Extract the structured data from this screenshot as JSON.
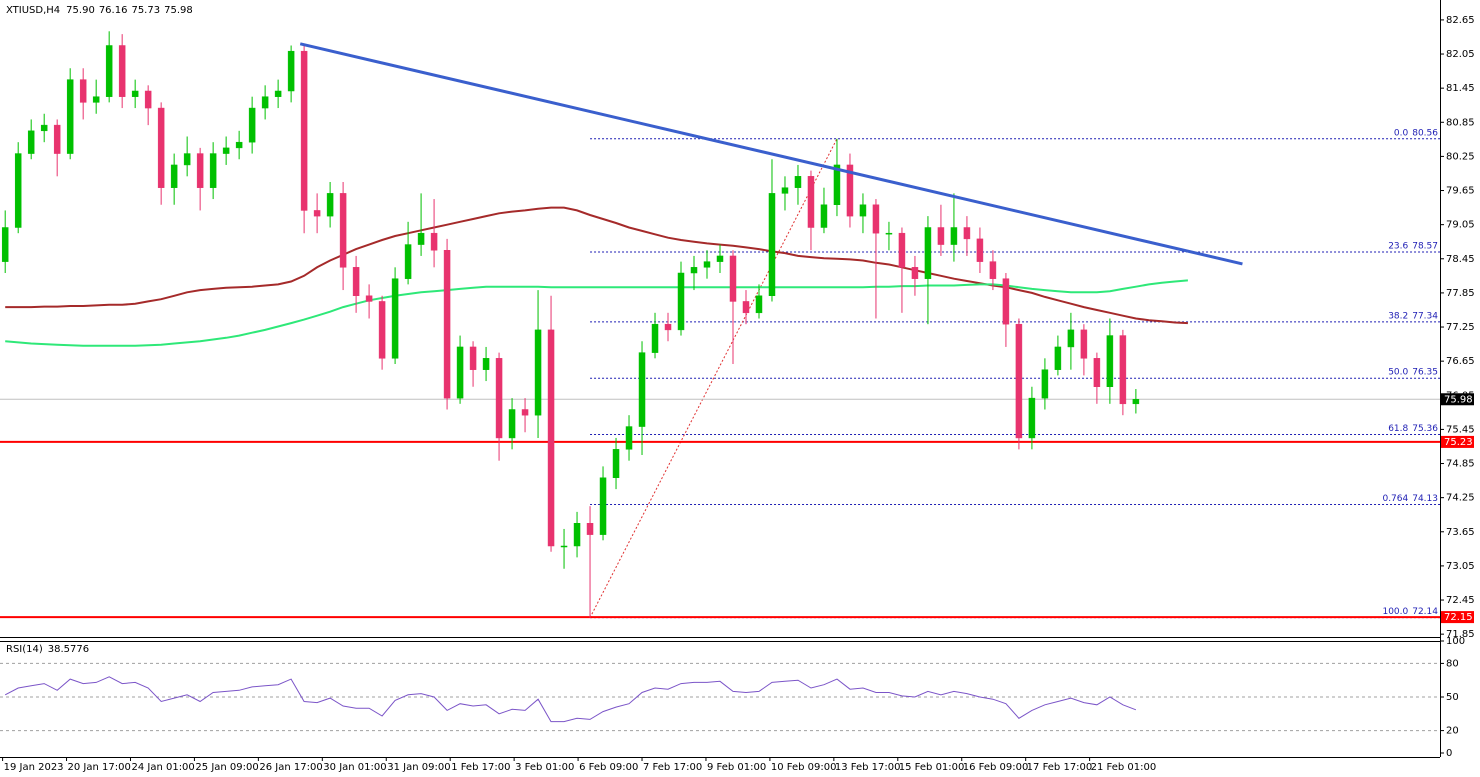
{
  "header": {
    "symbol": "XTIUSD,H4",
    "ohlc": [
      "75.90",
      "76.16",
      "75.73",
      "75.98"
    ]
  },
  "chart_data": {
    "type": "candlestick",
    "open": [
      78.4,
      79.0,
      80.3,
      80.7,
      80.8,
      80.3,
      81.6,
      81.2,
      81.3,
      82.2,
      81.3,
      81.4,
      81.1,
      79.7,
      80.1,
      80.3,
      79.7,
      80.3,
      80.4,
      80.5,
      81.1,
      81.3,
      81.4,
      82.1,
      79.3,
      79.2,
      79.6,
      78.3,
      77.8,
      77.7,
      76.7,
      78.1,
      78.7,
      78.9,
      78.6,
      76.0,
      76.9,
      76.5,
      76.7,
      75.3,
      75.8,
      75.7,
      77.2,
      73.4,
      73.4,
      73.8,
      73.6,
      74.6,
      75.1,
      75.5,
      76.8,
      77.3,
      77.2,
      78.2,
      78.3,
      78.4,
      78.5,
      77.7,
      77.5,
      77.8,
      79.6,
      79.7,
      79.9,
      79.0,
      79.4,
      80.1,
      79.2,
      79.4,
      78.9,
      78.9,
      78.3,
      78.1,
      79.0,
      78.7,
      79.0,
      78.8,
      78.4,
      78.1,
      77.3,
      75.3,
      76.0,
      76.5,
      76.9,
      77.2,
      76.7,
      76.2,
      77.1,
      75.9,
      null,
      null,
      null,
      null
    ],
    "high": [
      79.3,
      80.5,
      80.9,
      81.0,
      80.9,
      81.8,
      81.8,
      81.6,
      82.45,
      82.4,
      81.6,
      81.5,
      81.2,
      80.3,
      80.6,
      80.4,
      80.5,
      80.6,
      80.7,
      81.3,
      81.5,
      81.6,
      82.2,
      82.2,
      79.6,
      79.8,
      79.8,
      78.5,
      78.0,
      77.8,
      78.3,
      79.1,
      79.6,
      79.5,
      78.8,
      77.1,
      77.0,
      76.9,
      76.8,
      76.0,
      76.0,
      77.9,
      77.8,
      73.7,
      74.0,
      74.1,
      74.8,
      75.3,
      75.7,
      77.0,
      77.5,
      77.5,
      78.4,
      78.5,
      78.6,
      78.7,
      78.6,
      77.9,
      78.0,
      80.2,
      79.9,
      80.1,
      80.0,
      79.7,
      80.56,
      80.3,
      79.6,
      79.5,
      79.1,
      79.0,
      78.5,
      79.2,
      79.4,
      79.6,
      79.2,
      79.0,
      78.6,
      78.2,
      77.4,
      76.2,
      76.7,
      77.1,
      77.5,
      77.3,
      76.8,
      77.4,
      77.2,
      76.16,
      null,
      null,
      null,
      null
    ],
    "low": [
      78.2,
      78.9,
      80.2,
      80.5,
      79.9,
      80.2,
      80.9,
      81.0,
      81.2,
      81.1,
      81.1,
      80.8,
      79.4,
      79.4,
      79.9,
      79.3,
      79.5,
      80.1,
      80.2,
      80.3,
      80.9,
      81.1,
      81.2,
      78.9,
      78.9,
      79.0,
      77.9,
      77.5,
      77.4,
      76.5,
      76.6,
      78.0,
      78.5,
      78.3,
      75.8,
      75.9,
      76.2,
      76.3,
      74.9,
      75.1,
      75.4,
      75.3,
      73.3,
      73.0,
      73.2,
      72.14,
      73.5,
      74.4,
      74.9,
      75.0,
      76.7,
      77.0,
      77.1,
      77.9,
      78.1,
      78.2,
      76.6,
      77.3,
      77.4,
      77.7,
      79.3,
      79.4,
      78.6,
      78.9,
      79.2,
      79.0,
      78.9,
      77.4,
      78.6,
      77.5,
      77.8,
      77.3,
      78.5,
      78.4,
      78.5,
      78.2,
      77.9,
      76.9,
      75.1,
      75.1,
      75.8,
      76.4,
      76.5,
      76.4,
      75.9,
      75.9,
      75.7,
      75.73,
      null,
      null,
      null,
      null
    ],
    "close": [
      79.0,
      80.3,
      80.7,
      80.8,
      80.3,
      81.6,
      81.2,
      81.3,
      82.2,
      81.3,
      81.4,
      81.1,
      79.7,
      80.1,
      80.3,
      79.7,
      80.3,
      80.4,
      80.5,
      81.1,
      81.3,
      81.4,
      82.1,
      79.3,
      79.2,
      79.6,
      78.3,
      77.8,
      77.7,
      76.7,
      78.1,
      78.7,
      78.9,
      78.6,
      76.0,
      76.9,
      76.5,
      76.7,
      75.3,
      75.8,
      75.7,
      77.2,
      73.4,
      73.4,
      73.8,
      73.6,
      74.6,
      75.1,
      75.5,
      76.8,
      77.3,
      77.2,
      78.2,
      78.3,
      78.4,
      78.5,
      77.7,
      77.5,
      77.8,
      79.6,
      79.7,
      79.9,
      79.0,
      79.4,
      80.1,
      79.2,
      79.4,
      78.9,
      78.9,
      78.3,
      78.1,
      79.0,
      78.7,
      79.0,
      78.8,
      78.4,
      78.1,
      77.3,
      75.3,
      76.0,
      76.5,
      76.9,
      77.2,
      76.7,
      76.2,
      77.1,
      75.9,
      75.98,
      null,
      null,
      null,
      null
    ],
    "up_color": "#00c000",
    "down_color": "#e8336e",
    "overlays": [
      {
        "color": "#a52a2a",
        "values": [
          77.6,
          77.6,
          77.6,
          77.61,
          77.61,
          77.62,
          77.62,
          77.63,
          77.64,
          77.64,
          77.66,
          77.7,
          77.74,
          77.8,
          77.86,
          77.9,
          77.92,
          77.94,
          77.95,
          77.96,
          77.98,
          78.0,
          78.05,
          78.15,
          78.3,
          78.42,
          78.52,
          78.62,
          78.7,
          78.78,
          78.85,
          78.9,
          78.95,
          79.0,
          79.05,
          79.1,
          79.15,
          79.2,
          79.25,
          79.28,
          79.3,
          79.33,
          79.35,
          79.35,
          79.3,
          79.22,
          79.15,
          79.08,
          79.0,
          78.94,
          78.88,
          78.82,
          78.78,
          78.75,
          78.72,
          78.7,
          78.68,
          78.65,
          78.62,
          78.58,
          78.55,
          78.5,
          78.48,
          78.46,
          78.45,
          78.44,
          78.42,
          78.38,
          78.35,
          78.3,
          78.25,
          78.2,
          78.15,
          78.1,
          78.06,
          78.02,
          77.98,
          77.95,
          77.9,
          77.85,
          77.78,
          77.72,
          77.66,
          77.6,
          77.55,
          77.5,
          77.45,
          77.4,
          77.37,
          77.35,
          77.33,
          77.32
        ]
      },
      {
        "color": "#2ee878",
        "values": [
          77.0,
          76.98,
          76.96,
          76.95,
          76.94,
          76.93,
          76.92,
          76.92,
          76.92,
          76.92,
          76.92,
          76.93,
          76.94,
          76.96,
          76.98,
          77.0,
          77.03,
          77.06,
          77.1,
          77.15,
          77.2,
          77.26,
          77.32,
          77.38,
          77.45,
          77.52,
          77.6,
          77.66,
          77.72,
          77.76,
          77.8,
          77.83,
          77.86,
          77.88,
          77.9,
          77.92,
          77.94,
          77.96,
          77.96,
          77.96,
          77.96,
          77.96,
          77.95,
          77.95,
          77.95,
          77.95,
          77.95,
          77.95,
          77.95,
          77.95,
          77.95,
          77.95,
          77.95,
          77.95,
          77.95,
          77.95,
          77.95,
          77.95,
          77.95,
          77.95,
          77.95,
          77.95,
          77.95,
          77.95,
          77.95,
          77.95,
          77.95,
          77.96,
          77.96,
          77.97,
          77.97,
          77.98,
          77.98,
          77.98,
          77.99,
          78.0,
          78.0,
          77.98,
          77.95,
          77.92,
          77.9,
          77.88,
          77.86,
          77.86,
          77.86,
          77.88,
          77.92,
          77.96,
          78.0,
          78.03,
          78.05,
          78.07
        ]
      }
    ],
    "trendline": {
      "x": [
        22.7,
        95.2
      ],
      "y": [
        82.23,
        78.36
      ],
      "color": "#3a5fcd"
    },
    "levels": [
      {
        "value": 75.23,
        "color": "#ff0000"
      },
      {
        "value": 72.15,
        "color": "#ff0000"
      }
    ],
    "last_price": 75.98,
    "fibo": {
      "x": [
        45,
        64
      ],
      "color": "#1e1eb4",
      "diagonal_color": "#e03030",
      "levels": [
        {
          "label": "0.0",
          "value": 80.56
        },
        {
          "label": "23.6",
          "value": 78.57
        },
        {
          "label": "38.2",
          "value": 77.34
        },
        {
          "label": "50.0",
          "value": 76.35
        },
        {
          "label": "61.8",
          "value": 75.36
        },
        {
          "label": "0.764",
          "value": 74.13
        },
        {
          "label": "100.0",
          "value": 72.14
        }
      ]
    },
    "xlim": [
      -0.4,
      110.4
    ],
    "xticks": [
      {
        "value": -0.2,
        "label": "19 Jan 2023"
      },
      {
        "value": 4.72,
        "label": "20 Jan 17:00"
      },
      {
        "value": 9.64,
        "label": "24 Jan 01:00"
      },
      {
        "value": 14.56,
        "label": "25 Jan 09:00"
      },
      {
        "value": 19.48,
        "label": "26 Jan 17:00"
      },
      {
        "value": 24.4,
        "label": "30 Jan 01:00"
      },
      {
        "value": 29.32,
        "label": "31 Jan 09:00"
      },
      {
        "value": 34.24,
        "label": "1 Feb 17:00"
      },
      {
        "value": 39.16,
        "label": "3 Feb 01:00"
      },
      {
        "value": 44.08,
        "label": "6 Feb 09:00"
      },
      {
        "value": 49.0,
        "label": "7 Feb 17:00"
      },
      {
        "value": 53.92,
        "label": "9 Feb 01:00"
      },
      {
        "value": 58.84,
        "label": "10 Feb 09:00"
      },
      {
        "value": 63.76,
        "label": "13 Feb 17:00"
      },
      {
        "value": 68.68,
        "label": "15 Feb 01:00"
      },
      {
        "value": 73.6,
        "label": "16 Feb 09:00"
      },
      {
        "value": 78.52,
        "label": "17 Feb 17:00"
      },
      {
        "value": 83.44,
        "label": "21 Feb 01:00"
      }
    ],
    "ylim": [
      71.8,
      83.0
    ],
    "yticks": [
      82.65,
      82.05,
      81.45,
      80.85,
      80.25,
      79.65,
      79.05,
      78.45,
      77.85,
      77.25,
      76.65,
      76.05,
      75.45,
      74.85,
      74.25,
      73.65,
      73.05,
      72.45,
      71.85
    ],
    "rsi": {
      "title": "RSI(14)",
      "color": "#7b55c8",
      "values": [
        52,
        58,
        60,
        62,
        56,
        66,
        62,
        63,
        68,
        62,
        63,
        58,
        46,
        49,
        52,
        46,
        54,
        55,
        56,
        59,
        60,
        61,
        66,
        46,
        45,
        49,
        42,
        40,
        40,
        33,
        47,
        52,
        53,
        50,
        38,
        44,
        42,
        43,
        35,
        39,
        38,
        48,
        28,
        28,
        31,
        30,
        37,
        41,
        44,
        54,
        58,
        57,
        62,
        63,
        63,
        64,
        55,
        54,
        55,
        63,
        64,
        65,
        58,
        61,
        66,
        57,
        58,
        54,
        54,
        51,
        50,
        55,
        52,
        55,
        53,
        50,
        48,
        44,
        31,
        38,
        43,
        46,
        49,
        45,
        43,
        50,
        43,
        38.5776,
        null,
        null,
        null,
        null
      ],
      "ylim": [
        0,
        100
      ],
      "yticks": [
        100,
        80,
        50,
        20,
        0
      ]
    }
  }
}
